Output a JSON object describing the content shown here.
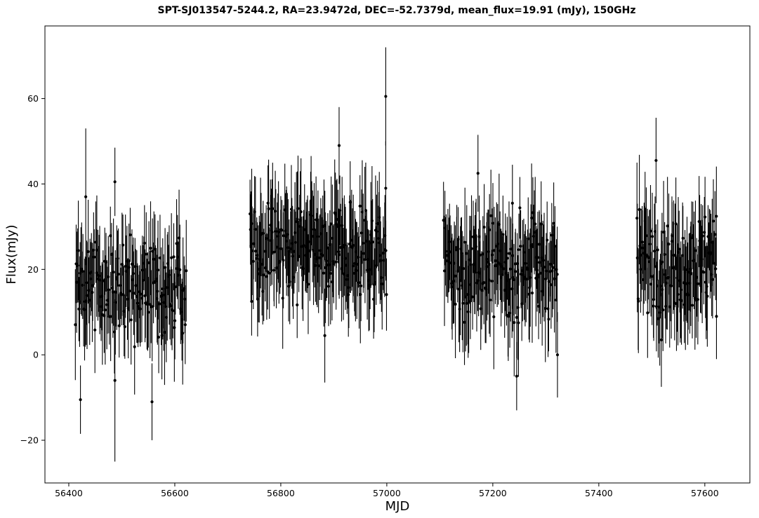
{
  "chart_data": {
    "type": "scatter",
    "title": "SPT-SJ013547-5244.2, RA=23.9472d, DEC=-52.7379d, mean_flux=19.91 (mJy), 150GHz",
    "xlabel": "MJD",
    "ylabel": "Flux(mJy)",
    "xlim": [
      56355,
      57685
    ],
    "ylim": [
      -30,
      77
    ],
    "x_ticks": [
      56400,
      56600,
      56800,
      57000,
      57200,
      57400,
      57600
    ],
    "y_ticks": [
      -20,
      0,
      20,
      40,
      60
    ],
    "grid": false,
    "legend": "none",
    "marker_color": "#000000",
    "seasons": [
      {
        "x_start": 56412,
        "x_end": 56622,
        "count": 160,
        "center": 16,
        "spread": 9,
        "err_min": 6,
        "err_max": 13
      },
      {
        "x_start": 56742,
        "x_end": 57000,
        "count": 200,
        "center": 25,
        "spread": 9,
        "err_min": 7,
        "err_max": 13
      },
      {
        "x_start": 57108,
        "x_end": 57322,
        "count": 170,
        "center": 20,
        "spread": 9,
        "err_min": 7,
        "err_max": 13
      },
      {
        "x_start": 57472,
        "x_end": 57622,
        "count": 120,
        "center": 22,
        "spread": 10,
        "err_min": 7,
        "err_max": 13
      }
    ],
    "highlights": [
      {
        "x": 56432,
        "y": 37,
        "err": 16
      },
      {
        "x": 56487,
        "y": 40.5,
        "err": 8
      },
      {
        "x": 56487,
        "y": -6,
        "err": 19
      },
      {
        "x": 56422,
        "y": -10.5,
        "err": 8
      },
      {
        "x": 56557,
        "y": -11,
        "err": 9
      },
      {
        "x": 56742,
        "y": 33,
        "err": 8
      },
      {
        "x": 56745,
        "y": 12.5,
        "err": 8
      },
      {
        "x": 56910,
        "y": 49,
        "err": 9
      },
      {
        "x": 56883,
        "y": 4.5,
        "err": 11
      },
      {
        "x": 56998,
        "y": 60.5,
        "err": 11.5
      },
      {
        "x": 56998,
        "y": 39,
        "err": 11
      },
      {
        "x": 57107,
        "y": 31.5,
        "err": 9
      },
      {
        "x": 57172,
        "y": 42.5,
        "err": 9
      },
      {
        "x": 57237,
        "y": 35.5,
        "err": 9
      },
      {
        "x": 57245,
        "y": -5,
        "err": 8
      },
      {
        "x": 57322,
        "y": 0,
        "err": 10
      },
      {
        "x": 57472,
        "y": 32,
        "err": 13
      },
      {
        "x": 57508,
        "y": 45.5,
        "err": 10
      },
      {
        "x": 57518,
        "y": 3.5,
        "err": 11
      },
      {
        "x": 57622,
        "y": 9,
        "err": 10
      }
    ]
  }
}
